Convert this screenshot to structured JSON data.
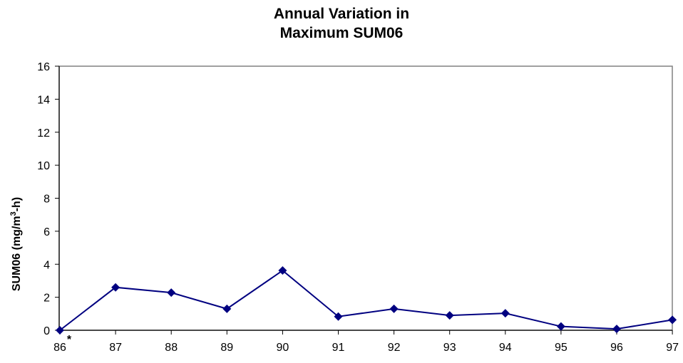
{
  "chart_data": {
    "type": "line",
    "title_lines": [
      "Annual Variation in",
      "Maximum SUM06"
    ],
    "xlabel": "",
    "ylabel_parts": [
      "SUM06 (mg/m",
      "3",
      "-h)"
    ],
    "categories": [
      "86",
      "87",
      "88",
      "89",
      "90",
      "91",
      "92",
      "93",
      "94",
      "95",
      "96",
      "97"
    ],
    "series": [
      {
        "values": [
          0,
          2.6,
          2.28,
          1.3,
          3.62,
          0.83,
          1.3,
          0.9,
          1.03,
          0.23,
          0.08,
          0.63
        ]
      }
    ],
    "annotations": [
      {
        "text": "*",
        "category": "86"
      }
    ],
    "ylim": [
      0,
      16
    ],
    "yticks": [
      0,
      2,
      4,
      6,
      8,
      10,
      12,
      14,
      16
    ],
    "grid": false,
    "legend": "none",
    "colors": {
      "series": "#000080",
      "plot_border": "#808080",
      "axis": "#000000"
    }
  }
}
